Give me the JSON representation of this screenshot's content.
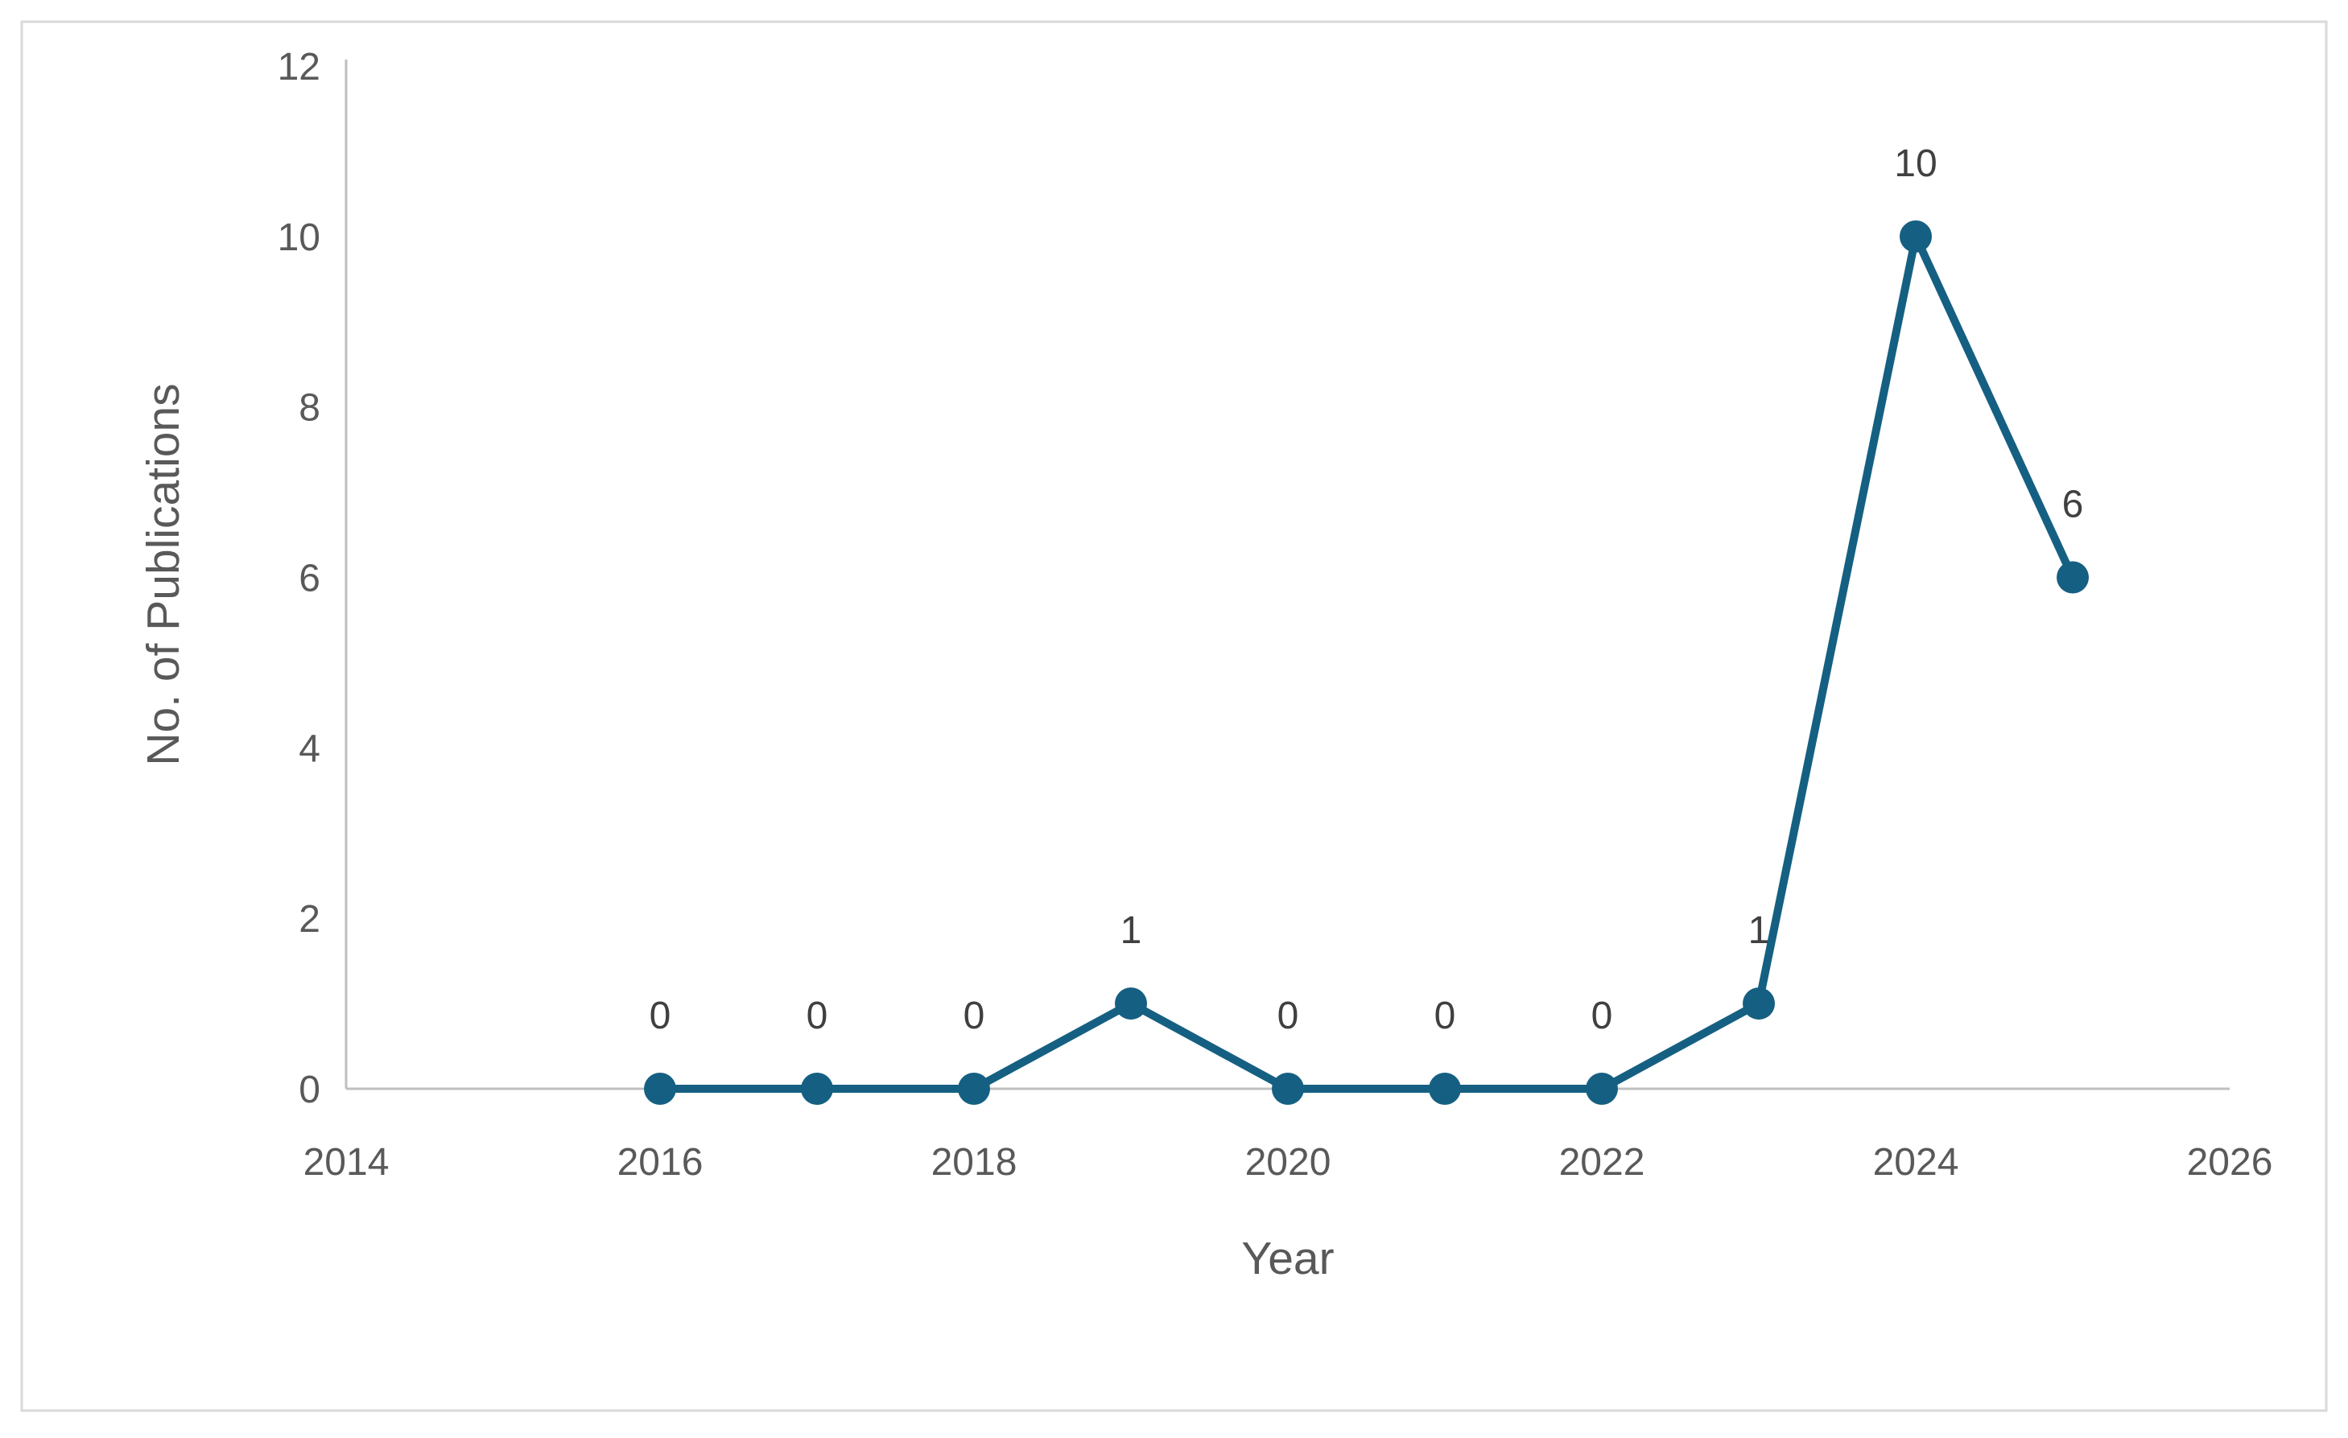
{
  "figure": {
    "background_color": "#ffffff",
    "border_color": "#d9d9d9"
  },
  "chart_data": {
    "type": "line",
    "title": "",
    "xlabel": "Year",
    "ylabel": "No. of Publications",
    "x": [
      2016,
      2017,
      2018,
      2019,
      2020,
      2021,
      2022,
      2023,
      2024,
      2025
    ],
    "series": [
      {
        "name": "No. of Publications",
        "values": [
          0,
          0,
          0,
          1,
          0,
          0,
          0,
          1,
          10,
          6
        ]
      }
    ],
    "data_labels": [
      "0",
      "0",
      "0",
      "1",
      "0",
      "0",
      "0",
      "1",
      "10",
      "6"
    ],
    "xlim": [
      2014,
      2026
    ],
    "ylim": [
      0,
      12
    ],
    "x_ticks": [
      "2014",
      "2016",
      "2018",
      "2020",
      "2022",
      "2024",
      "2026"
    ],
    "y_ticks": [
      "0",
      "2",
      "4",
      "6",
      "8",
      "10",
      "12"
    ],
    "grid": false,
    "legend": null,
    "line_color": "#156082",
    "marker": "circle",
    "axis_line_color": "#bfbfbf",
    "tick_label_color": "#595959",
    "axis_title_color": "#595959",
    "data_label_color": "#404040"
  }
}
